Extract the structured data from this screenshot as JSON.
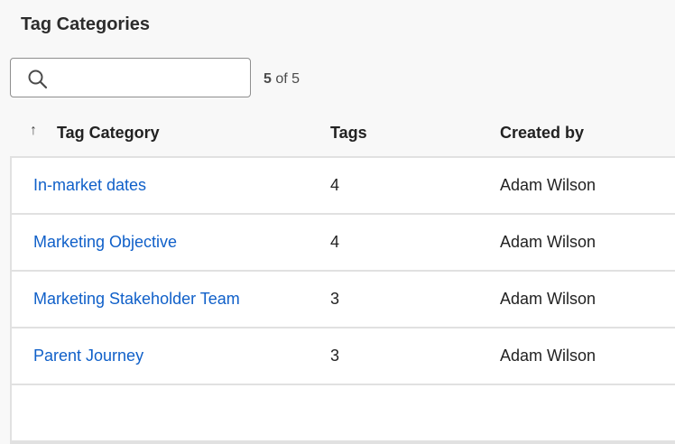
{
  "title": "Tag Categories",
  "search": {
    "placeholder": "",
    "value": ""
  },
  "count": {
    "shown": "5",
    "rest": " of 5"
  },
  "columns": {
    "name": "Tag Category",
    "tags": "Tags",
    "created_by": "Created by",
    "sort_icon": "arrow-up-icon"
  },
  "rows": [
    {
      "name": "In-market dates",
      "tags": "4",
      "created_by": "Adam Wilson"
    },
    {
      "name": "Marketing Objective",
      "tags": "4",
      "created_by": "Adam Wilson"
    },
    {
      "name": "Marketing Stakeholder Team",
      "tags": "3",
      "created_by": "Adam Wilson"
    },
    {
      "name": "Parent Journey",
      "tags": "3",
      "created_by": "Adam Wilson"
    },
    {
      "name": "",
      "tags": "",
      "created_by": ""
    }
  ],
  "colors": {
    "link": "#1060c9",
    "background": "#f8f8f8"
  }
}
